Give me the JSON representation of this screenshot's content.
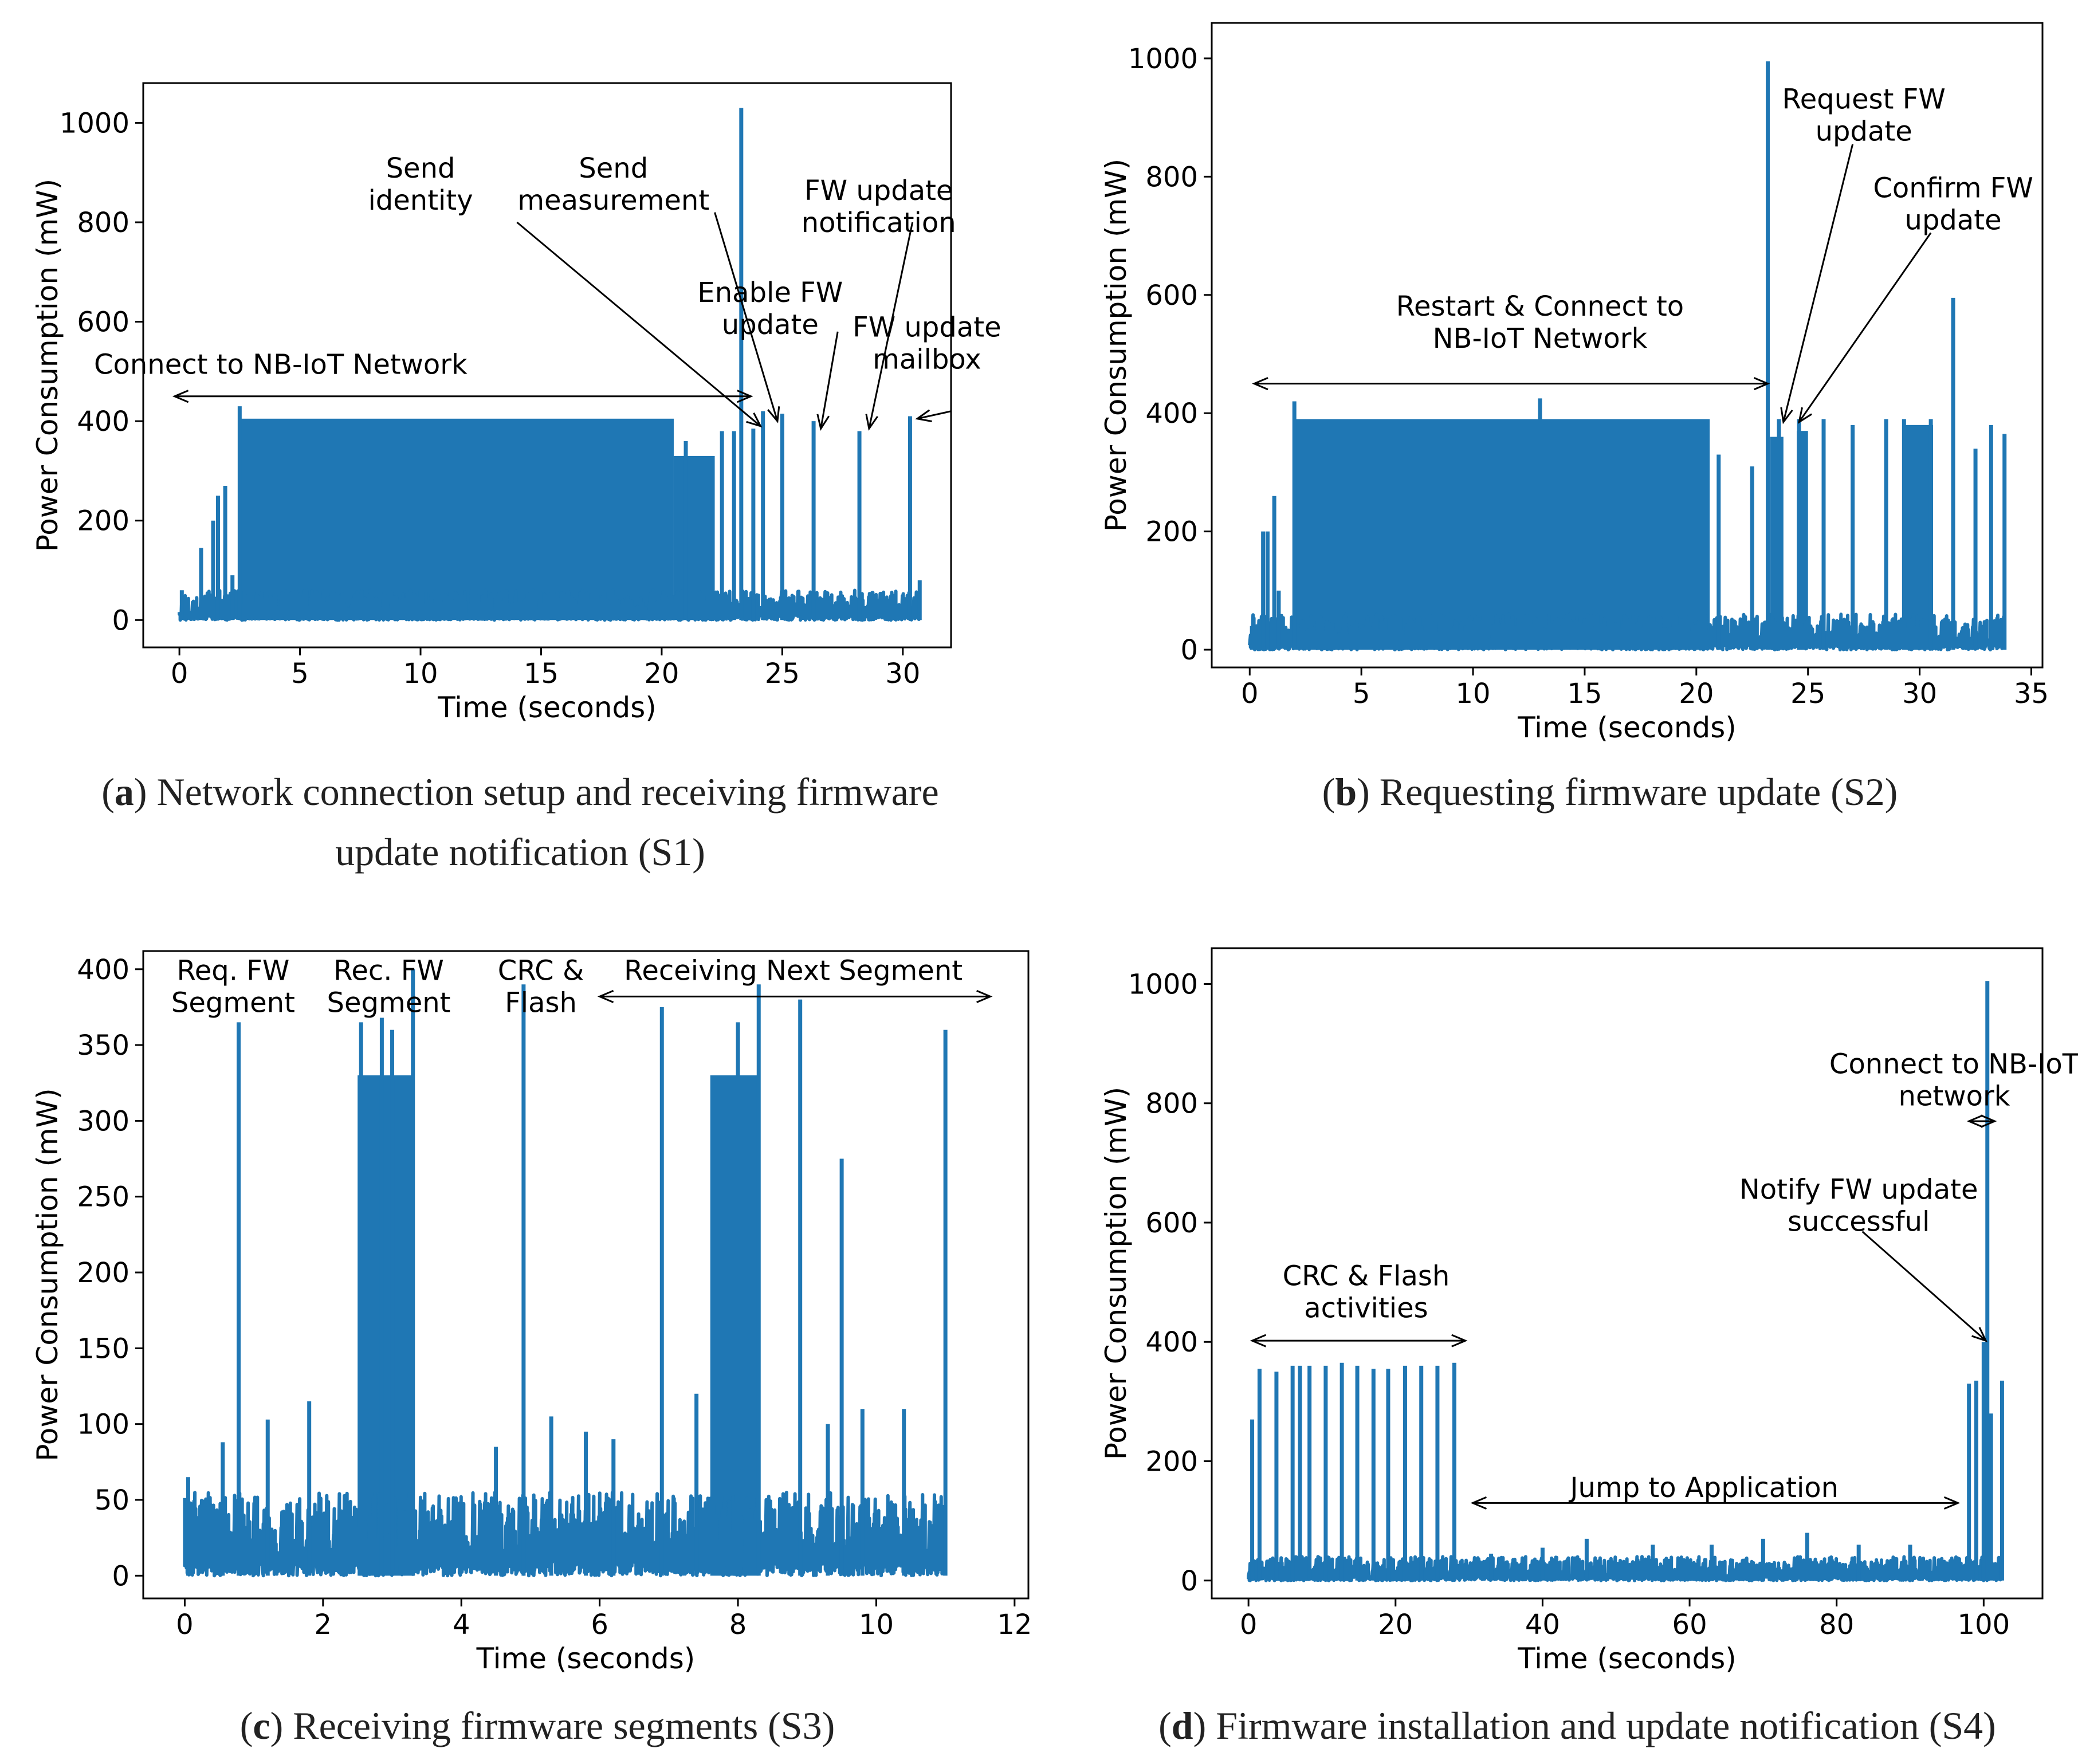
{
  "colors": {
    "series": "#1f77b4",
    "axis": "#000000",
    "text": "#000000"
  },
  "chart_data": [
    {
      "id": "a",
      "type": "line",
      "caption_letter": "a",
      "caption_lines": [
        ") Network connection setup and receiving firmware",
        "update notification (S1)"
      ],
      "xlabel": "Time (seconds)",
      "ylabel": "Power Consumption (mW)",
      "xlim": [
        -1.5,
        32.0
      ],
      "ylim": [
        -55,
        1080
      ],
      "xticks": [
        0,
        5,
        10,
        15,
        20,
        25,
        30
      ],
      "yticks": [
        0,
        200,
        400,
        600,
        800,
        1000
      ],
      "series": [
        {
          "baseline_max": 60,
          "bands": [
            [
              2.5,
              20.5,
              405
            ],
            [
              20.5,
              22.2,
              330
            ]
          ],
          "spikes": [
            [
              0.1,
              60
            ],
            [
              0.9,
              145
            ],
            [
              1.4,
              200
            ],
            [
              1.6,
              250
            ],
            [
              1.9,
              270
            ],
            [
              2.2,
              90
            ],
            [
              2.5,
              430
            ],
            [
              21.0,
              360
            ],
            [
              22.5,
              380
            ],
            [
              23.0,
              380
            ],
            [
              23.3,
              1030
            ],
            [
              23.8,
              385
            ],
            [
              24.2,
              420
            ],
            [
              25.0,
              415
            ],
            [
              26.3,
              400
            ],
            [
              28.2,
              380
            ],
            [
              30.3,
              410
            ],
            [
              30.7,
              80
            ]
          ]
        }
      ],
      "annotations": [
        {
          "lines": [
            "Send",
            "identity"
          ],
          "x": 10.0,
          "y": 890
        },
        {
          "lines": [
            "Send",
            "measurement"
          ],
          "x": 18.0,
          "y": 890
        },
        {
          "lines": [
            "FW update",
            "notification"
          ],
          "x": 29.0,
          "y": 845
        },
        {
          "lines": [
            "Enable FW",
            "update"
          ],
          "x": 24.5,
          "y": 640
        },
        {
          "lines": [
            "FW update",
            "mailbox"
          ],
          "x": 31.0,
          "y": 570
        },
        {
          "lines": [
            "Connect to NB-IoT Network"
          ],
          "x": 4.2,
          "y": 495
        }
      ],
      "arrows": [
        {
          "from": [
            -0.2,
            450
          ],
          "to": [
            23.7,
            450
          ],
          "double": true
        },
        {
          "from": [
            14.0,
            800
          ],
          "to": [
            24.1,
            390
          ],
          "double": false
        },
        {
          "from": [
            22.2,
            820
          ],
          "to": [
            24.8,
            400
          ],
          "double": false
        },
        {
          "from": [
            27.3,
            580
          ],
          "to": [
            26.6,
            385
          ],
          "double": false
        },
        {
          "from": [
            30.4,
            800
          ],
          "to": [
            28.6,
            385
          ],
          "double": false
        },
        {
          "from": [
            32.0,
            420
          ],
          "to": [
            30.6,
            405
          ],
          "double": false
        }
      ]
    },
    {
      "id": "b",
      "type": "line",
      "caption_letter": "b",
      "caption_lines": [
        ") Requesting firmware update (S2)"
      ],
      "xlabel": "Time (seconds)",
      "ylabel": "Power Consumption (mW)",
      "xlim": [
        -1.7,
        35.5
      ],
      "ylim": [
        -30,
        1060
      ],
      "xticks": [
        0,
        5,
        10,
        15,
        20,
        25,
        30,
        35
      ],
      "yticks": [
        0,
        200,
        400,
        600,
        800,
        1000
      ],
      "series": [
        {
          "baseline_max": 60,
          "bands": [
            [
              2.0,
              20.6,
              390
            ],
            [
              23.3,
              23.9,
              360
            ],
            [
              24.5,
              25.0,
              370
            ],
            [
              29.3,
              30.6,
              380
            ]
          ],
          "spikes": [
            [
              0.1,
              40
            ],
            [
              0.6,
              200
            ],
            [
              0.8,
              200
            ],
            [
              1.1,
              260
            ],
            [
              1.3,
              100
            ],
            [
              2.0,
              420
            ],
            [
              13.0,
              425
            ],
            [
              21.0,
              330
            ],
            [
              22.5,
              310
            ],
            [
              23.2,
              995
            ],
            [
              23.7,
              390
            ],
            [
              24.6,
              390
            ],
            [
              25.7,
              390
            ],
            [
              27.0,
              380
            ],
            [
              28.5,
              390
            ],
            [
              29.3,
              390
            ],
            [
              30.5,
              390
            ],
            [
              31.5,
              595
            ],
            [
              32.5,
              340
            ],
            [
              33.2,
              380
            ],
            [
              33.8,
              365
            ]
          ]
        }
      ],
      "annotations": [
        {
          "lines": [
            "Request FW",
            "update"
          ],
          "x": 27.5,
          "y": 915
        },
        {
          "lines": [
            "Confirm FW",
            "update"
          ],
          "x": 31.5,
          "y": 765
        },
        {
          "lines": [
            "Restart & Connect to",
            "NB-IoT Network"
          ],
          "x": 13.0,
          "y": 565
        }
      ],
      "arrows": [
        {
          "from": [
            0.2,
            450
          ],
          "to": [
            23.2,
            450
          ],
          "double": true
        },
        {
          "from": [
            27.0,
            855
          ],
          "to": [
            23.9,
            385
          ],
          "double": false
        },
        {
          "from": [
            30.5,
            705
          ],
          "to": [
            24.6,
            385
          ],
          "double": false
        }
      ]
    },
    {
      "id": "c",
      "type": "line",
      "caption_letter": "c",
      "caption_lines": [
        ") Receiving firmware segments (S3)"
      ],
      "xlabel": "Time (seconds)",
      "ylabel": "Power Consumption (mW)",
      "xlim": [
        -0.6,
        12.2
      ],
      "ylim": [
        -15,
        412
      ],
      "xticks": [
        0,
        2,
        4,
        6,
        8,
        10,
        12
      ],
      "yticks": [
        0,
        50,
        100,
        150,
        200,
        250,
        300,
        350,
        400
      ],
      "series": [
        {
          "baseline_max": 55,
          "bands": [
            [
              2.5,
              3.3,
              330
            ],
            [
              7.6,
              8.3,
              330
            ]
          ],
          "spikes": [
            [
              0.05,
              65
            ],
            [
              0.55,
              88
            ],
            [
              0.78,
              365
            ],
            [
              1.2,
              103
            ],
            [
              1.8,
              115
            ],
            [
              2.55,
              365
            ],
            [
              2.85,
              368
            ],
            [
              3.0,
              360
            ],
            [
              3.3,
              400
            ],
            [
              4.5,
              85
            ],
            [
              4.9,
              390
            ],
            [
              5.3,
              105
            ],
            [
              5.8,
              95
            ],
            [
              6.2,
              90
            ],
            [
              6.9,
              375
            ],
            [
              7.4,
              120
            ],
            [
              8.0,
              365
            ],
            [
              8.3,
              390
            ],
            [
              8.9,
              380
            ],
            [
              9.3,
              100
            ],
            [
              9.5,
              275
            ],
            [
              9.8,
              110
            ],
            [
              10.4,
              110
            ],
            [
              11.0,
              360
            ]
          ]
        }
      ],
      "annotations": [
        {
          "lines": [
            "Req. FW",
            "Segment"
          ],
          "x": 0.7,
          "y": 393
        },
        {
          "lines": [
            "Rec. FW",
            "Segment"
          ],
          "x": 2.95,
          "y": 393
        },
        {
          "lines": [
            "CRC &",
            "Flash"
          ],
          "x": 5.15,
          "y": 393
        },
        {
          "lines": [
            "Receiving Next Segment"
          ],
          "x": 8.8,
          "y": 393
        }
      ],
      "arrows": [
        {
          "from": [
            6.0,
            382
          ],
          "to": [
            11.65,
            382
          ],
          "double": true
        }
      ]
    },
    {
      "id": "d",
      "type": "line",
      "caption_letter": "d",
      "caption_lines": [
        ") Firmware installation and update notification (S4)"
      ],
      "xlabel": "Time (seconds)",
      "ylabel": "Power Consumption (mW)",
      "xlim": [
        -5,
        108
      ],
      "ylim": [
        -30,
        1060
      ],
      "xticks": [
        0,
        20,
        40,
        60,
        80,
        100
      ],
      "yticks": [
        0,
        200,
        400,
        600,
        800,
        1000
      ],
      "series": [
        {
          "baseline_max": 40,
          "bands": [],
          "spikes": [
            [
              0.5,
              270
            ],
            [
              1.5,
              355
            ],
            [
              3.8,
              350
            ],
            [
              6.0,
              360
            ],
            [
              7.0,
              360
            ],
            [
              8.3,
              360
            ],
            [
              10.5,
              360
            ],
            [
              12.7,
              365
            ],
            [
              14.8,
              360
            ],
            [
              17.0,
              355
            ],
            [
              19.0,
              355
            ],
            [
              21.3,
              360
            ],
            [
              23.5,
              360
            ],
            [
              25.7,
              360
            ],
            [
              28.0,
              365
            ],
            [
              33,
              45
            ],
            [
              40,
              55
            ],
            [
              46,
              70
            ],
            [
              55,
              60
            ],
            [
              63,
              60
            ],
            [
              70,
              70
            ],
            [
              76,
              80
            ],
            [
              83,
              60
            ],
            [
              90,
              60
            ],
            [
              98,
              330
            ],
            [
              99,
              335
            ],
            [
              100,
              400
            ],
            [
              100.5,
              1005
            ],
            [
              101,
              280
            ],
            [
              102.5,
              335
            ]
          ]
        }
      ],
      "annotations": [
        {
          "lines": [
            "CRC & Flash",
            "activities"
          ],
          "x": 16.0,
          "y": 495
        },
        {
          "lines": [
            "Connect to NB-IoT",
            "network"
          ],
          "x": 96.0,
          "y": 850
        },
        {
          "lines": [
            "Notify FW update",
            "successful"
          ],
          "x": 83.0,
          "y": 640
        },
        {
          "lines": [
            "Jump to Application"
          ],
          "x": 62.0,
          "y": 140
        }
      ],
      "arrows": [
        {
          "from": [
            0.5,
            402
          ],
          "to": [
            29.5,
            402
          ],
          "double": true
        },
        {
          "from": [
            30.5,
            130
          ],
          "to": [
            96.5,
            130
          ],
          "double": true
        },
        {
          "from": [
            98.0,
            770
          ],
          "to": [
            101.5,
            770
          ],
          "double": true
        },
        {
          "from": [
            83.5,
            585
          ],
          "to": [
            100.3,
            402
          ],
          "double": false
        }
      ]
    }
  ]
}
